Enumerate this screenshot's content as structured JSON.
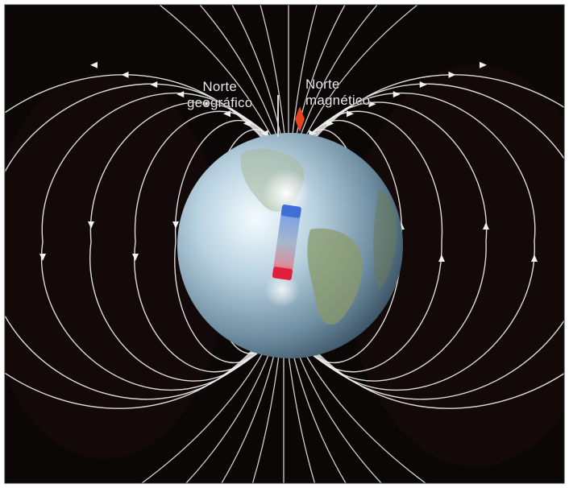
{
  "labels": {
    "geographic_north": [
      "Norte",
      "geográfico"
    ],
    "magnetic_north": [
      "Norte",
      "magnético"
    ]
  },
  "colors": {
    "background": "#0b0707",
    "field_lines": "#f2f2f2",
    "earth_light": "#eef6fb",
    "earth_dark": "#2f4a5c",
    "magnet_north": "#3f6fd6",
    "magnet_south": "#e0203a",
    "pointer": "#e8441f"
  },
  "icons": {
    "pointer": "red-diamond-pointer-icon"
  }
}
